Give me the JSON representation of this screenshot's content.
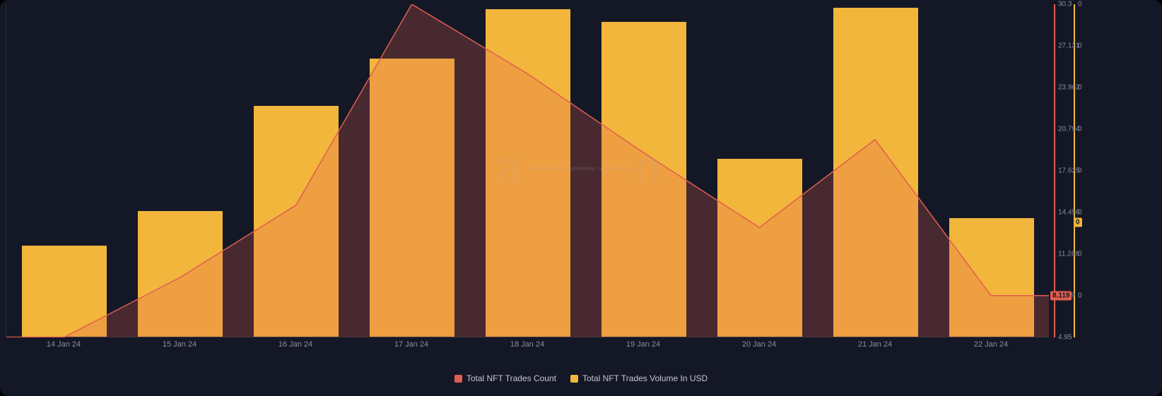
{
  "chart": {
    "type": "bar+area",
    "background_color": "#141826",
    "plot_border_color": "#2a2d3a",
    "x": {
      "labels": [
        "14 Jan 24",
        "15 Jan 24",
        "16 Jan 24",
        "17 Jan 24",
        "18 Jan 24",
        "19 Jan 24",
        "20 Jan 24",
        "21 Jan 24",
        "22 Jan 24"
      ],
      "label_color": "#8a8d99",
      "label_fontsize": 11
    },
    "y_left": {
      "axis_color": "#e35d4f",
      "ticks": [
        "30.3",
        "27.131",
        "23.962",
        "20.794",
        "17.625",
        "14.456",
        "11.288",
        "8.119",
        "4.95"
      ],
      "min": 4.95,
      "max": 30.3,
      "current_badge": "8.119"
    },
    "y_right": {
      "axis_color": "#f2b63c",
      "ticks": [
        "0",
        "0",
        "0",
        "0",
        "0",
        "0",
        "0",
        "0"
      ],
      "min": 0,
      "max": 30.3,
      "current_badge": "0"
    },
    "bars": {
      "color": "#f2b63c",
      "width_frac": 0.73,
      "values": [
        8.3,
        11.4,
        21.0,
        25.3,
        29.8,
        28.6,
        16.2,
        29.9,
        10.8
      ]
    },
    "line_area": {
      "stroke": "#e35d4f",
      "fill": "rgba(227,93,79,0.25)",
      "stroke_width": 1.5,
      "values": [
        4.95,
        9.5,
        15.0,
        30.3,
        25.0,
        19.0,
        13.3,
        20.0,
        8.119
      ]
    },
    "legend": [
      {
        "swatch": "#e35d4f",
        "label": "Total NFT Trades Count"
      },
      {
        "swatch": "#f2b63c",
        "label": "Total NFT Trades Volume In USD"
      }
    ],
    "watermark": "a───n"
  }
}
